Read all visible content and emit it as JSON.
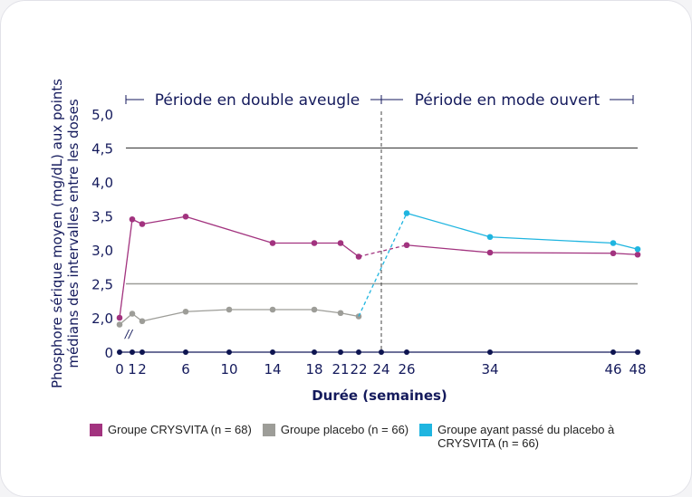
{
  "chart_data": {
    "type": "line",
    "xlabel": "Durée (semaines)",
    "ylabel": "Phosphore sérique moyen (mg/dL) aux points médians des intervalles entre les doses",
    "x_ticks": [
      0,
      1,
      2,
      6,
      10,
      14,
      18,
      21,
      22,
      24,
      26,
      34,
      46,
      48
    ],
    "y_ticks": [
      "0",
      "2,0",
      "2,5",
      "3,0",
      "3,5",
      "4,0",
      "4,5",
      "5,0"
    ],
    "ylim": [
      0,
      5.0
    ],
    "y_axis_break": "//",
    "reference_lines": [
      4.5,
      2.5
    ],
    "periods": [
      {
        "label": "Période en double aveugle",
        "from": 0,
        "to": 24
      },
      {
        "label": "Période en mode ouvert",
        "from": 24,
        "to": 48
      }
    ],
    "series": [
      {
        "name": "Groupe CRYSVITA (n = 68)",
        "color": "#a2337f",
        "x": [
          0,
          1,
          2,
          6,
          14,
          18,
          21,
          22,
          26,
          34,
          46,
          48
        ],
        "values": [
          2.0,
          3.45,
          3.38,
          3.49,
          3.1,
          3.1,
          3.1,
          2.9,
          3.07,
          2.96,
          2.95,
          2.93
        ]
      },
      {
        "name": "Groupe placebo (n = 66)",
        "color": "#9d9d98",
        "x": [
          0,
          1,
          2,
          6,
          10,
          14,
          18,
          21,
          22
        ],
        "values": [
          1.9,
          2.06,
          1.95,
          2.09,
          2.12,
          2.12,
          2.12,
          2.07,
          2.02
        ]
      },
      {
        "name": "Groupe ayant passé du placebo à CRYSVITA (n = 66)",
        "color": "#1fb5e0",
        "x": [
          22,
          26,
          34,
          46,
          48
        ],
        "values": [
          2.02,
          3.54,
          3.19,
          3.1,
          3.01
        ]
      }
    ]
  }
}
